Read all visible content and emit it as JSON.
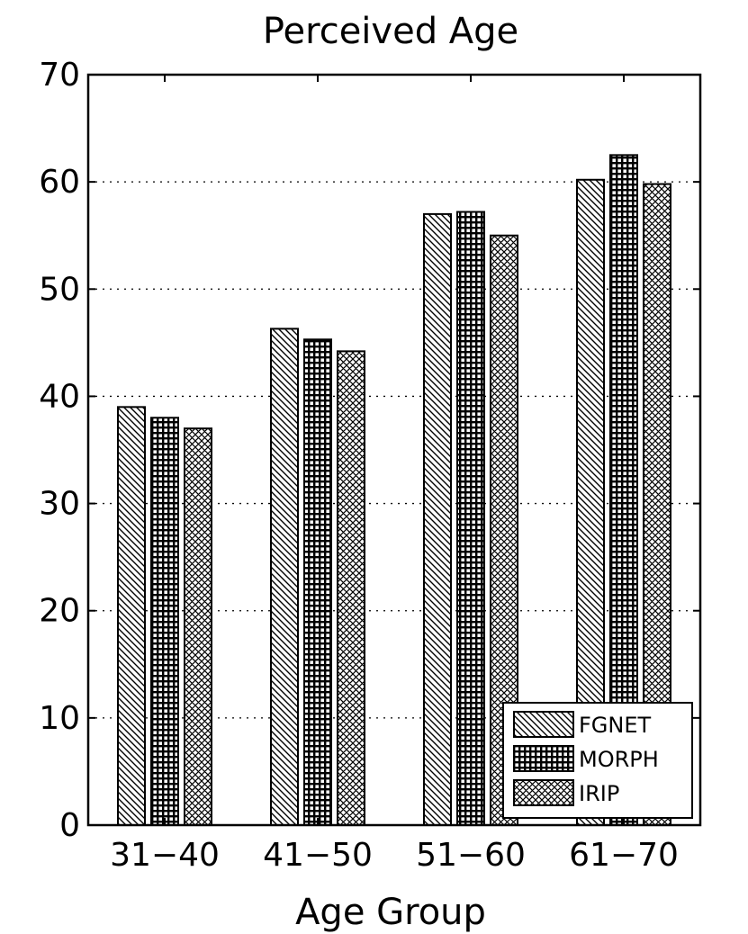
{
  "chart_data": {
    "type": "bar",
    "title": "Perceived Age",
    "xlabel": "Age Group",
    "ylabel": "",
    "categories": [
      "31−40",
      "41−50",
      "51−60",
      "61−70"
    ],
    "series": [
      {
        "name": "FGNET",
        "pattern": "diagonal-hatch",
        "values": [
          39.0,
          46.3,
          57.0,
          60.2
        ]
      },
      {
        "name": "MORPH",
        "pattern": "black-grid",
        "values": [
          38.0,
          45.3,
          57.2,
          62.5
        ]
      },
      {
        "name": "IRIP",
        "pattern": "crosshatch",
        "values": [
          37.0,
          44.2,
          55.0,
          59.8
        ]
      }
    ],
    "ylim": [
      0,
      70
    ],
    "yticks": [
      "0",
      "10",
      "20",
      "30",
      "40",
      "50",
      "60",
      "70"
    ],
    "grid": "horizontal dotted",
    "legend_position": "bottom-right"
  },
  "colors": {
    "bar_stroke": "#000000",
    "background": "#ffffff",
    "grid": "#000000"
  }
}
